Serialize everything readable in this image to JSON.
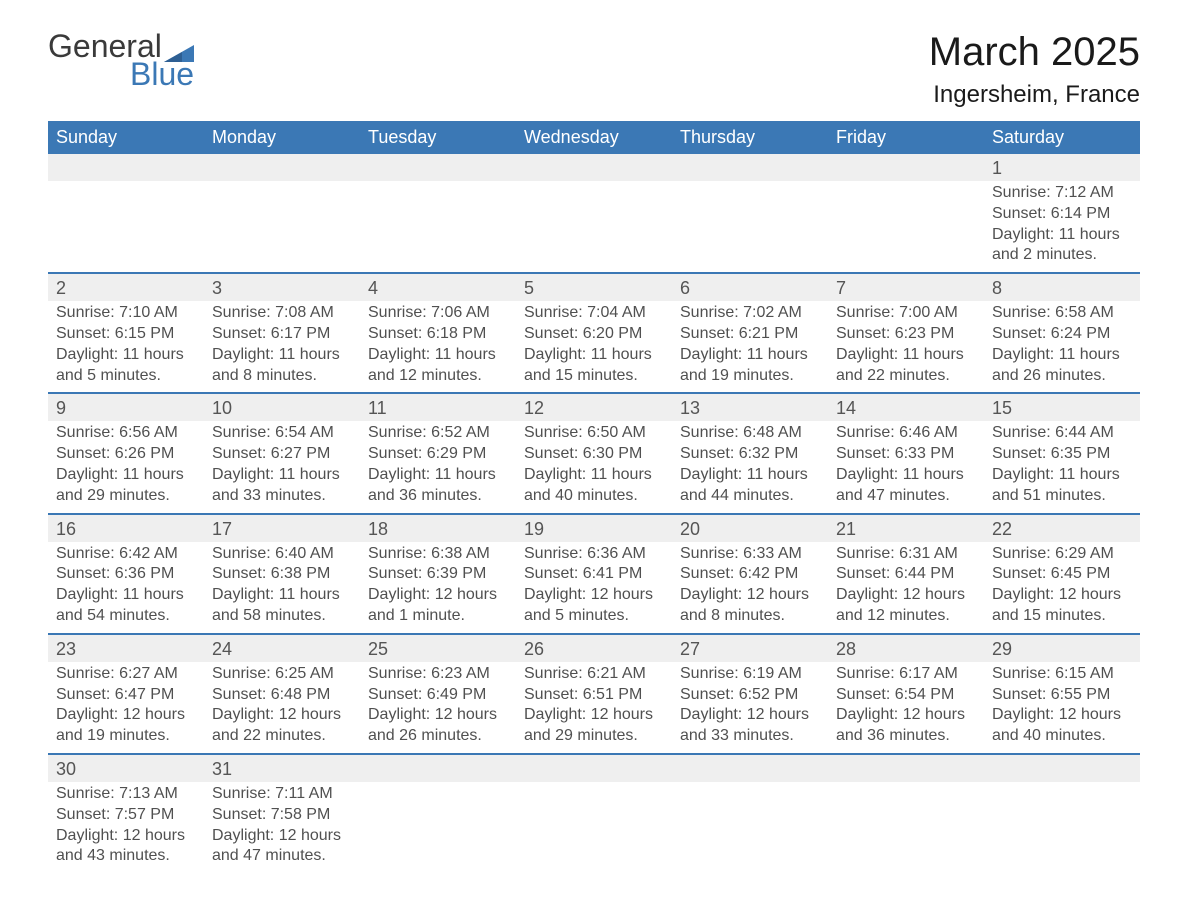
{
  "logo": {
    "word1": "General",
    "word2": "Blue",
    "icon_color": "#3b78b5"
  },
  "title": "March 2025",
  "location": "Ingersheim, France",
  "colors": {
    "header_bg": "#3b78b5",
    "header_text": "#ffffff",
    "daynum_bg": "#efefef",
    "row_border": "#3b78b5",
    "text": "#505050"
  },
  "dayHeaders": [
    "Sunday",
    "Monday",
    "Tuesday",
    "Wednesday",
    "Thursday",
    "Friday",
    "Saturday"
  ],
  "weeks": [
    [
      null,
      null,
      null,
      null,
      null,
      null,
      {
        "n": "1",
        "sr": "Sunrise: 7:12 AM",
        "ss": "Sunset: 6:14 PM",
        "d1": "Daylight: 11 hours",
        "d2": "and 2 minutes."
      }
    ],
    [
      {
        "n": "2",
        "sr": "Sunrise: 7:10 AM",
        "ss": "Sunset: 6:15 PM",
        "d1": "Daylight: 11 hours",
        "d2": "and 5 minutes."
      },
      {
        "n": "3",
        "sr": "Sunrise: 7:08 AM",
        "ss": "Sunset: 6:17 PM",
        "d1": "Daylight: 11 hours",
        "d2": "and 8 minutes."
      },
      {
        "n": "4",
        "sr": "Sunrise: 7:06 AM",
        "ss": "Sunset: 6:18 PM",
        "d1": "Daylight: 11 hours",
        "d2": "and 12 minutes."
      },
      {
        "n": "5",
        "sr": "Sunrise: 7:04 AM",
        "ss": "Sunset: 6:20 PM",
        "d1": "Daylight: 11 hours",
        "d2": "and 15 minutes."
      },
      {
        "n": "6",
        "sr": "Sunrise: 7:02 AM",
        "ss": "Sunset: 6:21 PM",
        "d1": "Daylight: 11 hours",
        "d2": "and 19 minutes."
      },
      {
        "n": "7",
        "sr": "Sunrise: 7:00 AM",
        "ss": "Sunset: 6:23 PM",
        "d1": "Daylight: 11 hours",
        "d2": "and 22 minutes."
      },
      {
        "n": "8",
        "sr": "Sunrise: 6:58 AM",
        "ss": "Sunset: 6:24 PM",
        "d1": "Daylight: 11 hours",
        "d2": "and 26 minutes."
      }
    ],
    [
      {
        "n": "9",
        "sr": "Sunrise: 6:56 AM",
        "ss": "Sunset: 6:26 PM",
        "d1": "Daylight: 11 hours",
        "d2": "and 29 minutes."
      },
      {
        "n": "10",
        "sr": "Sunrise: 6:54 AM",
        "ss": "Sunset: 6:27 PM",
        "d1": "Daylight: 11 hours",
        "d2": "and 33 minutes."
      },
      {
        "n": "11",
        "sr": "Sunrise: 6:52 AM",
        "ss": "Sunset: 6:29 PM",
        "d1": "Daylight: 11 hours",
        "d2": "and 36 minutes."
      },
      {
        "n": "12",
        "sr": "Sunrise: 6:50 AM",
        "ss": "Sunset: 6:30 PM",
        "d1": "Daylight: 11 hours",
        "d2": "and 40 minutes."
      },
      {
        "n": "13",
        "sr": "Sunrise: 6:48 AM",
        "ss": "Sunset: 6:32 PM",
        "d1": "Daylight: 11 hours",
        "d2": "and 44 minutes."
      },
      {
        "n": "14",
        "sr": "Sunrise: 6:46 AM",
        "ss": "Sunset: 6:33 PM",
        "d1": "Daylight: 11 hours",
        "d2": "and 47 minutes."
      },
      {
        "n": "15",
        "sr": "Sunrise: 6:44 AM",
        "ss": "Sunset: 6:35 PM",
        "d1": "Daylight: 11 hours",
        "d2": "and 51 minutes."
      }
    ],
    [
      {
        "n": "16",
        "sr": "Sunrise: 6:42 AM",
        "ss": "Sunset: 6:36 PM",
        "d1": "Daylight: 11 hours",
        "d2": "and 54 minutes."
      },
      {
        "n": "17",
        "sr": "Sunrise: 6:40 AM",
        "ss": "Sunset: 6:38 PM",
        "d1": "Daylight: 11 hours",
        "d2": "and 58 minutes."
      },
      {
        "n": "18",
        "sr": "Sunrise: 6:38 AM",
        "ss": "Sunset: 6:39 PM",
        "d1": "Daylight: 12 hours",
        "d2": "and 1 minute."
      },
      {
        "n": "19",
        "sr": "Sunrise: 6:36 AM",
        "ss": "Sunset: 6:41 PM",
        "d1": "Daylight: 12 hours",
        "d2": "and 5 minutes."
      },
      {
        "n": "20",
        "sr": "Sunrise: 6:33 AM",
        "ss": "Sunset: 6:42 PM",
        "d1": "Daylight: 12 hours",
        "d2": "and 8 minutes."
      },
      {
        "n": "21",
        "sr": "Sunrise: 6:31 AM",
        "ss": "Sunset: 6:44 PM",
        "d1": "Daylight: 12 hours",
        "d2": "and 12 minutes."
      },
      {
        "n": "22",
        "sr": "Sunrise: 6:29 AM",
        "ss": "Sunset: 6:45 PM",
        "d1": "Daylight: 12 hours",
        "d2": "and 15 minutes."
      }
    ],
    [
      {
        "n": "23",
        "sr": "Sunrise: 6:27 AM",
        "ss": "Sunset: 6:47 PM",
        "d1": "Daylight: 12 hours",
        "d2": "and 19 minutes."
      },
      {
        "n": "24",
        "sr": "Sunrise: 6:25 AM",
        "ss": "Sunset: 6:48 PM",
        "d1": "Daylight: 12 hours",
        "d2": "and 22 minutes."
      },
      {
        "n": "25",
        "sr": "Sunrise: 6:23 AM",
        "ss": "Sunset: 6:49 PM",
        "d1": "Daylight: 12 hours",
        "d2": "and 26 minutes."
      },
      {
        "n": "26",
        "sr": "Sunrise: 6:21 AM",
        "ss": "Sunset: 6:51 PM",
        "d1": "Daylight: 12 hours",
        "d2": "and 29 minutes."
      },
      {
        "n": "27",
        "sr": "Sunrise: 6:19 AM",
        "ss": "Sunset: 6:52 PM",
        "d1": "Daylight: 12 hours",
        "d2": "and 33 minutes."
      },
      {
        "n": "28",
        "sr": "Sunrise: 6:17 AM",
        "ss": "Sunset: 6:54 PM",
        "d1": "Daylight: 12 hours",
        "d2": "and 36 minutes."
      },
      {
        "n": "29",
        "sr": "Sunrise: 6:15 AM",
        "ss": "Sunset: 6:55 PM",
        "d1": "Daylight: 12 hours",
        "d2": "and 40 minutes."
      }
    ],
    [
      {
        "n": "30",
        "sr": "Sunrise: 7:13 AM",
        "ss": "Sunset: 7:57 PM",
        "d1": "Daylight: 12 hours",
        "d2": "and 43 minutes."
      },
      {
        "n": "31",
        "sr": "Sunrise: 7:11 AM",
        "ss": "Sunset: 7:58 PM",
        "d1": "Daylight: 12 hours",
        "d2": "and 47 minutes."
      },
      null,
      null,
      null,
      null,
      null
    ]
  ]
}
